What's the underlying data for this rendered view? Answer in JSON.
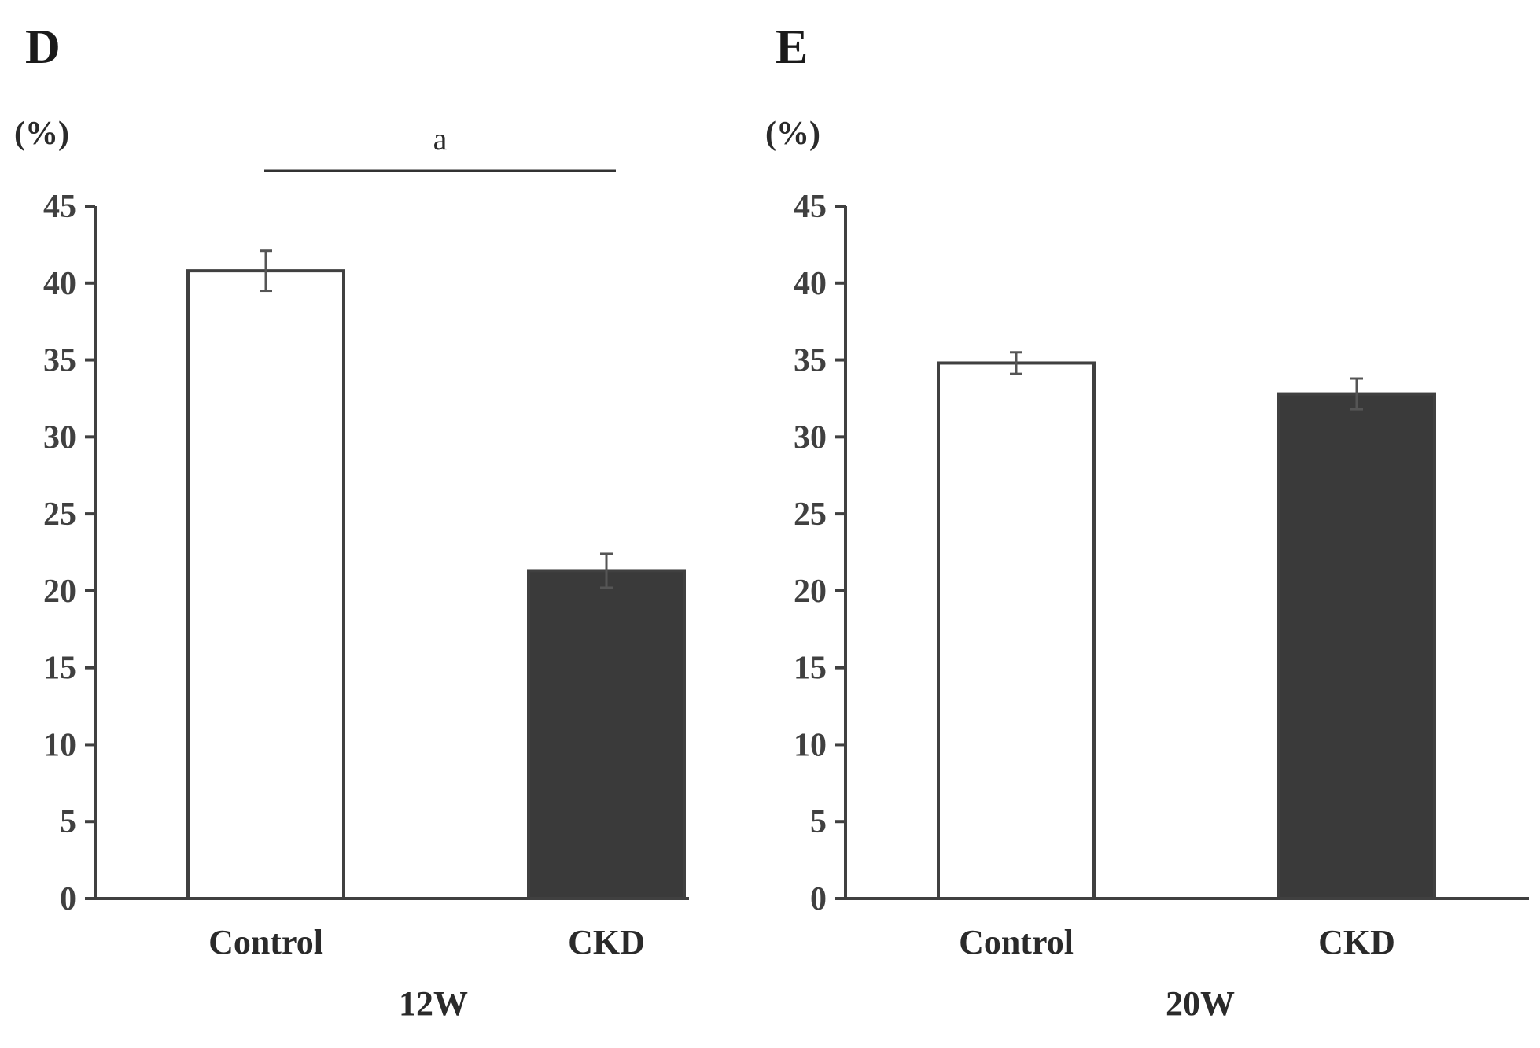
{
  "chart_data": [
    {
      "panel": "D",
      "type": "bar",
      "unit_label": "(%)",
      "xlabel": "12W",
      "ylim": [
        0,
        45
      ],
      "yticks": [
        0,
        5,
        10,
        15,
        20,
        25,
        30,
        35,
        40,
        45
      ],
      "categories": [
        "Control",
        "CKD"
      ],
      "values": [
        40.8,
        21.3
      ],
      "errors": [
        1.3,
        1.1
      ],
      "bar_colors": [
        "#ffffff",
        "#3a3a3a"
      ],
      "significance": {
        "label": "a",
        "between": [
          "Control",
          "CKD"
        ]
      }
    },
    {
      "panel": "E",
      "type": "bar",
      "unit_label": "(%)",
      "xlabel": "20W",
      "ylim": [
        0,
        45
      ],
      "yticks": [
        0,
        5,
        10,
        15,
        20,
        25,
        30,
        35,
        40,
        45
      ],
      "categories": [
        "Control",
        "CKD"
      ],
      "values": [
        34.8,
        32.8
      ],
      "errors": [
        0.7,
        1.0
      ],
      "bar_colors": [
        "#ffffff",
        "#3a3a3a"
      ]
    }
  ],
  "colors": {
    "axis": "#404040",
    "bar_outline": "#404040",
    "error_bar": "#555555"
  }
}
